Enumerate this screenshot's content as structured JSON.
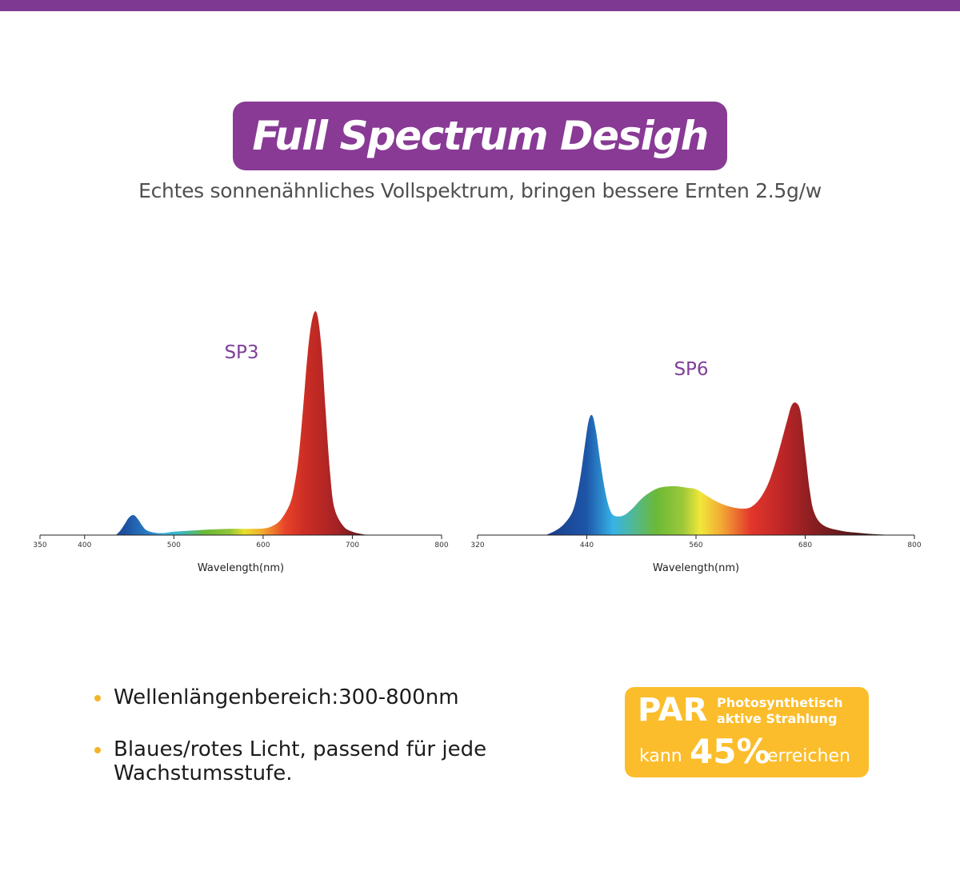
{
  "header": {
    "title": "Full Spectrum Desigh",
    "subtitle": "Echtes sonnenähnliches Vollspektrum, bringen bessere Ernten 2.5g/w"
  },
  "colors": {
    "brand_purple": "#883a95",
    "accent_orange": "#fbbd2b",
    "top_bar": "#7e3a92"
  },
  "chart_data": [
    {
      "type": "area",
      "title": "SP3",
      "xlabel": "Wavelength(nm)",
      "ylabel": "",
      "x_ticks": [
        350,
        400,
        500,
        600,
        700,
        800
      ],
      "xlim": [
        350,
        800
      ],
      "ylim": [
        0,
        1
      ],
      "grid": false,
      "series": [
        {
          "x": [
            435,
            440,
            445,
            450,
            455,
            460,
            465,
            470,
            480,
            490,
            500,
            520,
            540,
            560,
            580,
            600,
            610,
            620,
            630,
            635,
            640,
            645,
            650,
            655,
            660,
            665,
            670,
            675,
            680,
            690,
            700,
            710,
            720
          ],
          "y": [
            0.0,
            0.02,
            0.05,
            0.08,
            0.09,
            0.07,
            0.04,
            0.02,
            0.01,
            0.01,
            0.015,
            0.02,
            0.025,
            0.028,
            0.028,
            0.03,
            0.04,
            0.07,
            0.14,
            0.22,
            0.36,
            0.58,
            0.82,
            0.97,
            1.0,
            0.86,
            0.56,
            0.28,
            0.12,
            0.04,
            0.015,
            0.005,
            0.0
          ]
        }
      ]
    },
    {
      "type": "area",
      "title": "SP6",
      "xlabel": "Wavelength(nm)",
      "ylabel": "",
      "x_ticks": [
        320,
        440,
        560,
        680,
        800
      ],
      "xlim": [
        320,
        800
      ],
      "ylim": [
        0,
        1
      ],
      "grid": false,
      "series": [
        {
          "x": [
            395,
            405,
            415,
            425,
            432,
            438,
            442,
            446,
            450,
            455,
            460,
            465,
            470,
            480,
            490,
            500,
            510,
            520,
            530,
            540,
            550,
            560,
            570,
            580,
            590,
            600,
            610,
            620,
            630,
            640,
            650,
            660,
            665,
            670,
            675,
            680,
            685,
            690,
            700,
            720,
            740,
            760,
            790
          ],
          "y": [
            0.0,
            0.03,
            0.08,
            0.18,
            0.38,
            0.65,
            0.82,
            0.86,
            0.75,
            0.52,
            0.32,
            0.19,
            0.14,
            0.14,
            0.19,
            0.26,
            0.31,
            0.34,
            0.35,
            0.35,
            0.34,
            0.33,
            0.29,
            0.25,
            0.22,
            0.2,
            0.19,
            0.2,
            0.26,
            0.38,
            0.58,
            0.82,
            0.93,
            0.95,
            0.88,
            0.6,
            0.32,
            0.16,
            0.07,
            0.03,
            0.015,
            0.005,
            0.0
          ]
        }
      ]
    }
  ],
  "features": [
    "Wellenlängenbereich:300-800nm",
    "Blaues/rotes Licht, passend für jede",
    "Wachstumsstufe."
  ],
  "par_badge": {
    "par": "PAR",
    "line1": "Photosynthetisch",
    "line2": "aktive Strahlung",
    "prefix": "kann",
    "percent": "45%",
    "suffix": "erreichen"
  }
}
